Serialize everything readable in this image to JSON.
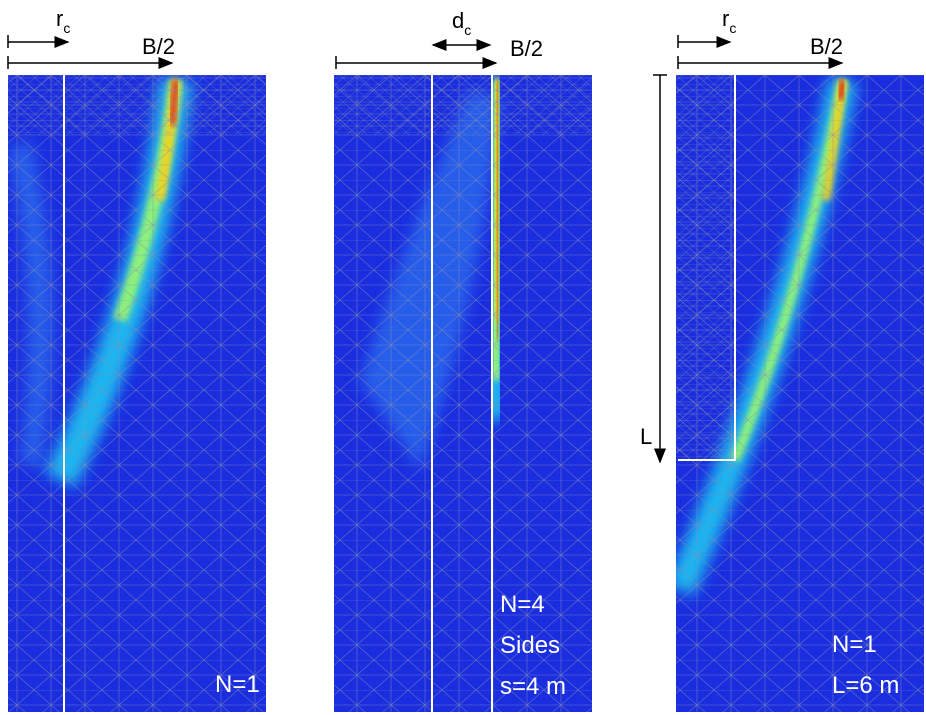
{
  "panels": [
    {
      "width_label": "B/2",
      "offset_label": {
        "symbol": "r",
        "subscript": "c"
      },
      "annotation": [
        "N=1"
      ]
    },
    {
      "width_label": "B/2",
      "offset_label": {
        "symbol": "d",
        "subscript": "c"
      },
      "annotation": [
        "N=4",
        "Sides",
        "s=4 m"
      ]
    },
    {
      "width_label": "B/2",
      "offset_label": {
        "symbol": "r",
        "subscript": "c"
      },
      "length_label": "L",
      "annotation": [
        "N=1",
        "L=6 m"
      ]
    }
  ]
}
